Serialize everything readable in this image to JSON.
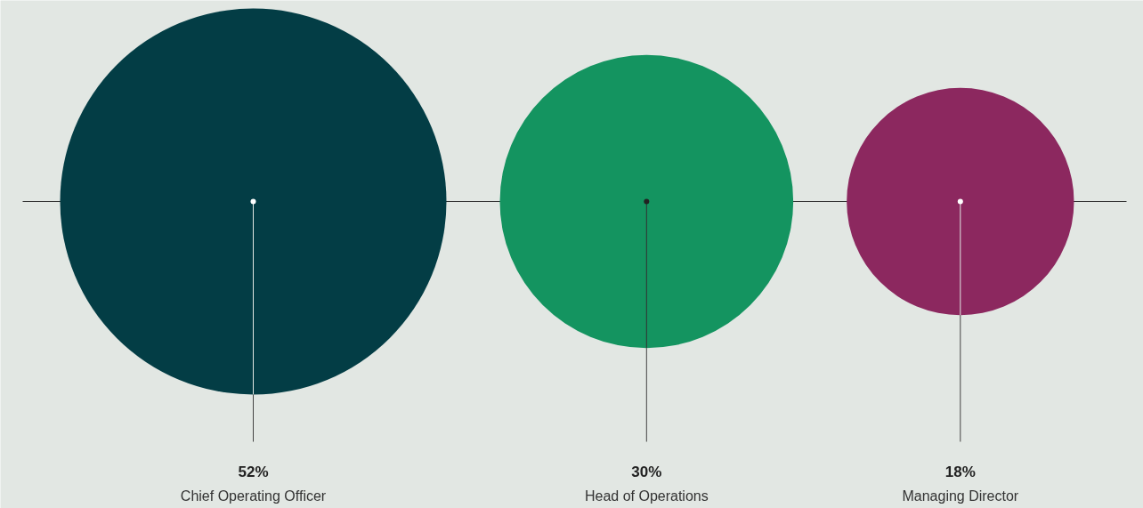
{
  "chart_data": {
    "type": "other",
    "categories": [
      "Chief Operating Officer",
      "Head of Operations",
      "Managing Director"
    ],
    "values": [
      52,
      30,
      18
    ],
    "colors": [
      "#033d45",
      "#149460",
      "#8c285f"
    ],
    "value_labels": [
      "52%",
      "30%",
      "18%"
    ]
  }
}
